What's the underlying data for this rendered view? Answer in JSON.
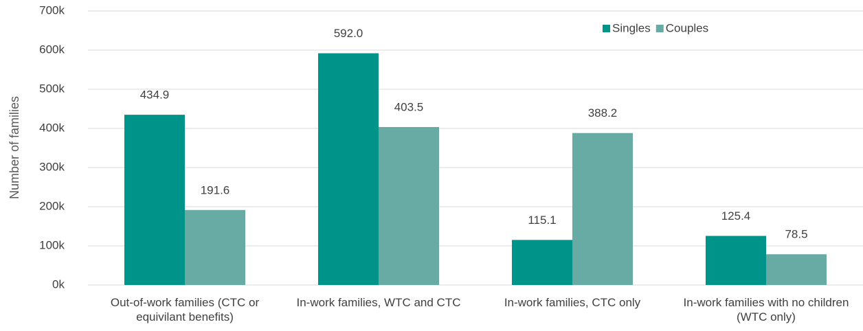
{
  "chart_data": {
    "type": "bar",
    "y_label": "Number of families",
    "categories": [
      "Out-of-work families (CTC or equivilant benefits)",
      "In-work families, WTC and CTC",
      "In-work families, CTC only",
      "In-work families with no children (WTC only)"
    ],
    "series": [
      {
        "name": "Singles",
        "color": "#00938a",
        "values": [
          434.9,
          592.0,
          115.1,
          125.4
        ],
        "value_labels": [
          "434.9",
          "592.0",
          "115.1",
          "125.4"
        ]
      },
      {
        "name": "Couples",
        "color": "#68aaa4",
        "values": [
          191.6,
          403.5,
          388.2,
          78.5
        ],
        "value_labels": [
          "191.6",
          "403.5",
          "388.2",
          "78.5"
        ]
      }
    ],
    "ylim": [
      0,
      700
    ],
    "yticks": [
      {
        "value": 0,
        "label": "0k"
      },
      {
        "value": 100,
        "label": "100k"
      },
      {
        "value": 200,
        "label": "200k"
      },
      {
        "value": 300,
        "label": "300k"
      },
      {
        "value": 400,
        "label": "400k"
      },
      {
        "value": 500,
        "label": "500k"
      },
      {
        "value": 600,
        "label": "600k"
      },
      {
        "value": 700,
        "label": "700k"
      }
    ],
    "grid": true,
    "legend": "top-right"
  }
}
